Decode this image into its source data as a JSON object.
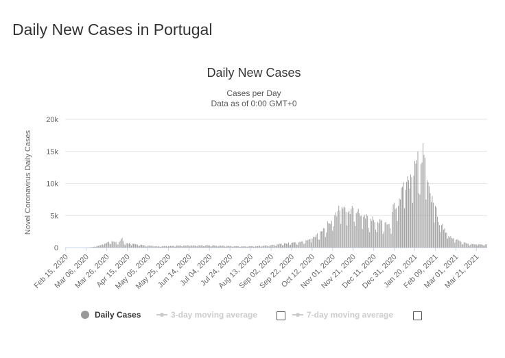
{
  "page": {
    "title": "Daily New Cases in Portugal"
  },
  "chart_data": {
    "type": "bar",
    "title": "Daily New Cases",
    "subtitle_line1": "Cases per Day",
    "subtitle_line2": "Data as of 0:00 GMT+0",
    "ylabel": "Novel Coronavirus Daily Cases",
    "xlabel": "",
    "ylim": [
      0,
      20000
    ],
    "yticks": [
      {
        "value": 0,
        "label": "0"
      },
      {
        "value": 5000,
        "label": "5k"
      },
      {
        "value": 10000,
        "label": "10k"
      },
      {
        "value": 15000,
        "label": "15k"
      },
      {
        "value": 20000,
        "label": "20k"
      }
    ],
    "grid": true,
    "bar_color": "#999999",
    "x_start": "2020-02-15",
    "x_end": "2021-03-31",
    "xtick_labels": [
      "Feb 15, 2020",
      "Mar 06, 2020",
      "Mar 26, 2020",
      "Apr 15, 2020",
      "May 05, 2020",
      "May 25, 2020",
      "Jun 14, 2020",
      "Jul 04, 2020",
      "Jul 24, 2020",
      "Aug 13, 2020",
      "Sep 02, 2020",
      "Sep 22, 2020",
      "Oct 12, 2020",
      "Nov 01, 2020",
      "Nov 21, 2020",
      "Dec 11, 2020",
      "Dec 31, 2020",
      "Jan 20, 2021",
      "Feb 09, 2021",
      "Mar 01, 2021",
      "Mar 21, 2021"
    ],
    "series": [
      {
        "name": "Daily Cases",
        "keyframes": [
          [
            "2020-02-15",
            0
          ],
          [
            "2020-03-02",
            0
          ],
          [
            "2020-03-08",
            20
          ],
          [
            "2020-03-12",
            80
          ],
          [
            "2020-03-16",
            200
          ],
          [
            "2020-03-19",
            350
          ],
          [
            "2020-03-22",
            500
          ],
          [
            "2020-03-25",
            650
          ],
          [
            "2020-03-27",
            850
          ],
          [
            "2020-03-31",
            1000
          ],
          [
            "2020-04-04",
            900
          ],
          [
            "2020-04-07",
            850
          ],
          [
            "2020-04-10",
            1516
          ],
          [
            "2020-04-12",
            500
          ],
          [
            "2020-04-15",
            700
          ],
          [
            "2020-04-20",
            600
          ],
          [
            "2020-04-25",
            450
          ],
          [
            "2020-05-01",
            350
          ],
          [
            "2020-05-05",
            300
          ],
          [
            "2020-05-10",
            250
          ],
          [
            "2020-05-15",
            200
          ],
          [
            "2020-05-25",
            230
          ],
          [
            "2020-06-05",
            300
          ],
          [
            "2020-06-14",
            330
          ],
          [
            "2020-06-25",
            350
          ],
          [
            "2020-07-04",
            350
          ],
          [
            "2020-07-15",
            300
          ],
          [
            "2020-07-24",
            250
          ],
          [
            "2020-08-05",
            200
          ],
          [
            "2020-08-13",
            220
          ],
          [
            "2020-08-25",
            280
          ],
          [
            "2020-09-02",
            380
          ],
          [
            "2020-09-12",
            600
          ],
          [
            "2020-09-22",
            750
          ],
          [
            "2020-10-01",
            850
          ],
          [
            "2020-10-08",
            1200
          ],
          [
            "2020-10-12",
            1400
          ],
          [
            "2020-10-16",
            2000
          ],
          [
            "2020-10-20",
            2500
          ],
          [
            "2020-10-24",
            3000
          ],
          [
            "2020-10-28",
            3800
          ],
          [
            "2020-10-31",
            4200
          ],
          [
            "2020-11-04",
            5500
          ],
          [
            "2020-11-08",
            5800
          ],
          [
            "2020-11-12",
            6400
          ],
          [
            "2020-11-16",
            5500
          ],
          [
            "2020-11-21",
            6200
          ],
          [
            "2020-11-25",
            5600
          ],
          [
            "2020-11-29",
            5000
          ],
          [
            "2020-12-04",
            5200
          ],
          [
            "2020-12-08",
            4500
          ],
          [
            "2020-12-11",
            4300
          ],
          [
            "2020-12-15",
            4000
          ],
          [
            "2020-12-19",
            4200
          ],
          [
            "2020-12-23",
            4000
          ],
          [
            "2020-12-27",
            3000
          ],
          [
            "2020-12-31",
            7000
          ],
          [
            "2021-01-04",
            6500
          ],
          [
            "2021-01-08",
            9500
          ],
          [
            "2021-01-11",
            9000
          ],
          [
            "2021-01-14",
            10500
          ],
          [
            "2021-01-17",
            11000
          ],
          [
            "2021-01-20",
            13500
          ],
          [
            "2021-01-23",
            15000
          ],
          [
            "2021-01-26",
            13000
          ],
          [
            "2021-01-28",
            16300
          ],
          [
            "2021-01-30",
            14000
          ],
          [
            "2021-02-01",
            10500
          ],
          [
            "2021-02-04",
            8500
          ],
          [
            "2021-02-07",
            7000
          ],
          [
            "2021-02-09",
            6500
          ],
          [
            "2021-02-12",
            4000
          ],
          [
            "2021-02-15",
            3500
          ],
          [
            "2021-02-18",
            3000
          ],
          [
            "2021-02-22",
            1800
          ],
          [
            "2021-02-25",
            1500
          ],
          [
            "2021-03-01",
            1200
          ],
          [
            "2021-03-06",
            900
          ],
          [
            "2021-03-11",
            700
          ],
          [
            "2021-03-16",
            600
          ],
          [
            "2021-03-21",
            500
          ],
          [
            "2021-03-31",
            500
          ]
        ]
      },
      {
        "name": "3-day moving average",
        "visible": false
      },
      {
        "name": "7-day moving average",
        "visible": false
      }
    ]
  },
  "legend": {
    "daily_label": "Daily Cases",
    "ma3_label": "3-day moving average",
    "ma7_label": "7-day moving average",
    "ma3_checked": false,
    "ma7_checked": false
  }
}
